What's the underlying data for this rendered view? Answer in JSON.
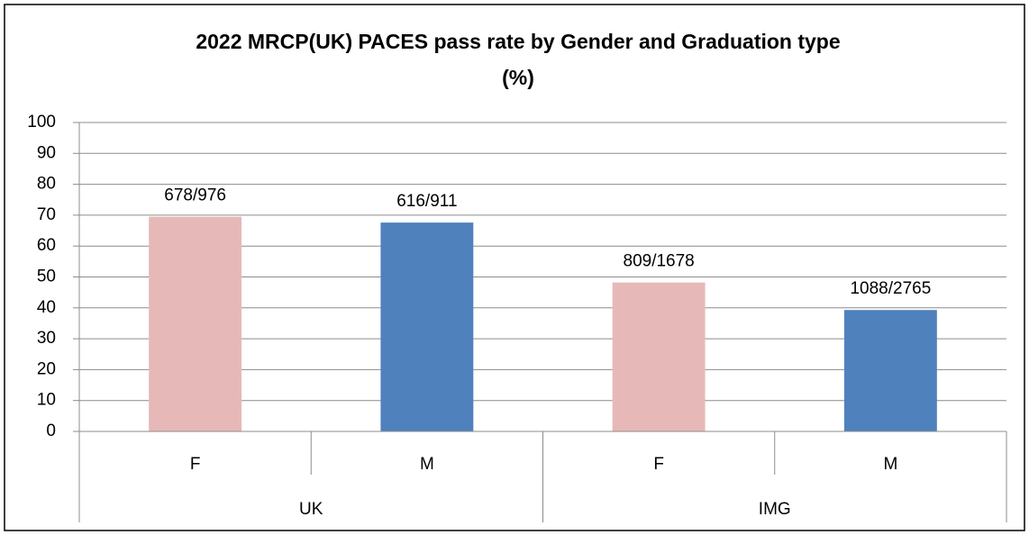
{
  "chart_data": {
    "type": "bar",
    "title": [
      "2022 MRCP(UK) PACES pass rate by Gender and Graduation type",
      "(%)"
    ],
    "categories": [
      "F",
      "M",
      "F",
      "M"
    ],
    "groups": [
      {
        "name": "UK",
        "size": 2
      },
      {
        "name": "IMG",
        "size": 2
      }
    ],
    "values": [
      69.5,
      67.6,
      48.2,
      39.3
    ],
    "value_labels": [
      "678/976",
      "616/911",
      "809/1678",
      "1088/2765"
    ],
    "colors": [
      "#e6b9b8",
      "#4f81bd",
      "#e6b9b8",
      "#4f81bd"
    ],
    "ylim": [
      0,
      100
    ],
    "yticks": [
      0,
      10,
      20,
      30,
      40,
      50,
      60,
      70,
      80,
      90,
      100
    ],
    "grid": true
  }
}
